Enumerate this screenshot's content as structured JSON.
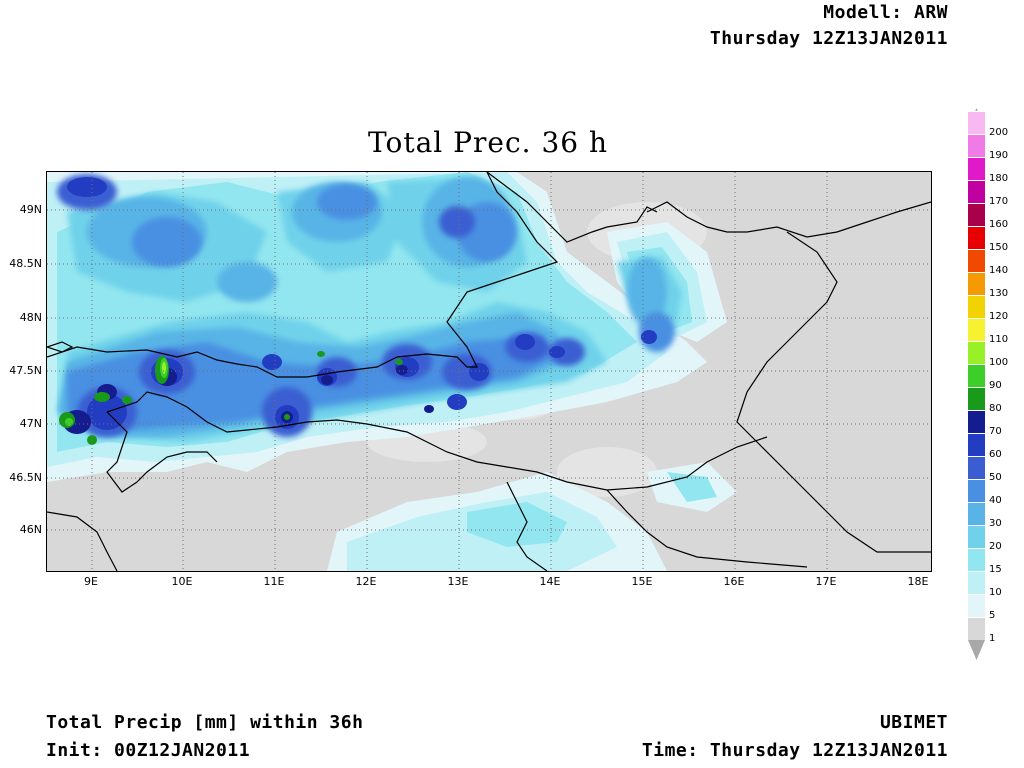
{
  "header": {
    "model": "Modell: ARW",
    "valid": "Thursday 12Z13JAN2011"
  },
  "title": "Total Prec. 36 h",
  "footer": {
    "left_line1": "Total Precip [mm] within 36h",
    "left_line2": "Init: 00Z12JAN2011",
    "right_line1": "UBIMET",
    "right_line2": "Time: Thursday 12Z13JAN2011"
  },
  "map": {
    "lat_labels": [
      "49N",
      "48.5N",
      "48N",
      "47.5N",
      "47N",
      "46.5N",
      "46N"
    ],
    "lon_labels": [
      "9E",
      "10E",
      "11E",
      "12E",
      "13E",
      "14E",
      "15E",
      "16E",
      "17E",
      "18E"
    ],
    "background_color": "#d8d8d8"
  },
  "legend": {
    "items": [
      {
        "label": "1",
        "color": "#d8d8d8"
      },
      {
        "label": "5",
        "color": "#e2f6fa"
      },
      {
        "label": "10",
        "color": "#bff0f6"
      },
      {
        "label": "15",
        "color": "#92e6ef"
      },
      {
        "label": "20",
        "color": "#6fd2ea"
      },
      {
        "label": "30",
        "color": "#58b4e6"
      },
      {
        "label": "40",
        "color": "#4a90e2"
      },
      {
        "label": "50",
        "color": "#3a5ed2"
      },
      {
        "label": "60",
        "color": "#223cc2"
      },
      {
        "label": "70",
        "color": "#141c8e"
      },
      {
        "label": "80",
        "color": "#1a9a1a"
      },
      {
        "label": "90",
        "color": "#3ccf2a"
      },
      {
        "label": "100",
        "color": "#98f028"
      },
      {
        "label": "110",
        "color": "#f6f230"
      },
      {
        "label": "120",
        "color": "#f2d200"
      },
      {
        "label": "130",
        "color": "#f59a00"
      },
      {
        "label": "140",
        "color": "#f04a00"
      },
      {
        "label": "150",
        "color": "#e80000"
      },
      {
        "label": "160",
        "color": "#a8004a"
      },
      {
        "label": "170",
        "color": "#c000a0"
      },
      {
        "label": "180",
        "color": "#e01ac8"
      },
      {
        "label": "190",
        "color": "#f07ae6"
      },
      {
        "label": "200",
        "color": "#f8b8f2"
      }
    ]
  }
}
